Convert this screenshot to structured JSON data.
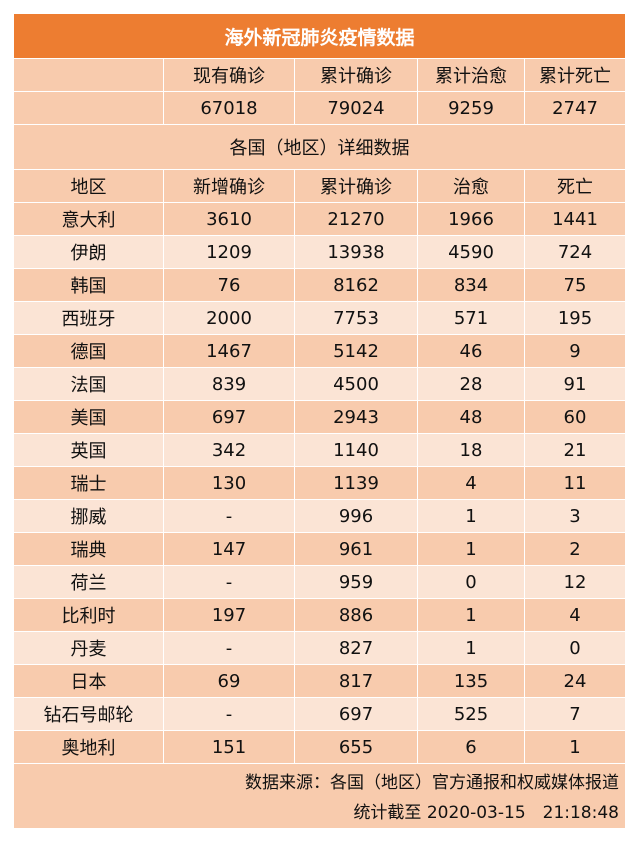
{
  "title": "海外新冠肺炎疫情数据",
  "summary": {
    "headers": [
      "",
      "现有确诊",
      "累计确诊",
      "累计治愈",
      "累计死亡"
    ],
    "values": [
      "",
      "67018",
      "79024",
      "9259",
      "2747"
    ]
  },
  "section_title": "各国（地区）详细数据",
  "columns": [
    "地区",
    "新增确诊",
    "累计确诊",
    "治愈",
    "死亡"
  ],
  "rows": [
    [
      "意大利",
      "3610",
      "21270",
      "1966",
      "1441"
    ],
    [
      "伊朗",
      "1209",
      "13938",
      "4590",
      "724"
    ],
    [
      "韩国",
      "76",
      "8162",
      "834",
      "75"
    ],
    [
      "西班牙",
      "2000",
      "7753",
      "571",
      "195"
    ],
    [
      "德国",
      "1467",
      "5142",
      "46",
      "9"
    ],
    [
      "法国",
      "839",
      "4500",
      "28",
      "91"
    ],
    [
      "美国",
      "697",
      "2943",
      "48",
      "60"
    ],
    [
      "英国",
      "342",
      "1140",
      "18",
      "21"
    ],
    [
      "瑞士",
      "130",
      "1139",
      "4",
      "11"
    ],
    [
      "挪威",
      "-",
      "996",
      "1",
      "3"
    ],
    [
      "瑞典",
      "147",
      "961",
      "1",
      "2"
    ],
    [
      "荷兰",
      "-",
      "959",
      "0",
      "12"
    ],
    [
      "比利时",
      "197",
      "886",
      "1",
      "4"
    ],
    [
      "丹麦",
      "-",
      "827",
      "1",
      "0"
    ],
    [
      "日本",
      "69",
      "817",
      "135",
      "24"
    ],
    [
      "钻石号邮轮",
      "-",
      "697",
      "525",
      "7"
    ],
    [
      "奥地利",
      "151",
      "655",
      "6",
      "1"
    ]
  ],
  "footer": {
    "source": "数据来源：各国（地区）官方通报和权威媒体报道",
    "timestamp": "统计截至 2020-03-15　21:18:48"
  }
}
